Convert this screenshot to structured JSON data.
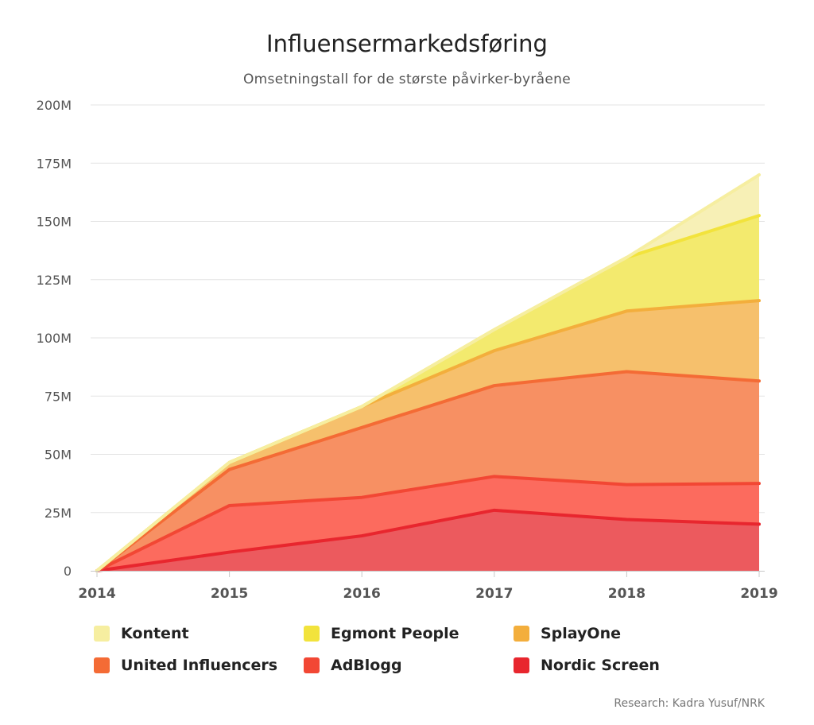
{
  "title": "Influensermarkedsføring",
  "subtitle": "Omsetningstall for de største påvirker-byråene",
  "credit": "Research: Kadra Yusuf/NRK",
  "chart_data": {
    "type": "area",
    "stacked": true,
    "title": "Influensermarkedsføring",
    "subtitle": "Omsetningstall for de største påvirker-byråene",
    "x": [
      "2014",
      "2015",
      "2016",
      "2017",
      "2018",
      "2019"
    ],
    "ylim": [
      0,
      200
    ],
    "y_ticks": [
      "0",
      "25M",
      "50M",
      "75M",
      "100M",
      "125M",
      "150M",
      "175M",
      "200M"
    ],
    "y_tick_values": [
      0,
      25,
      50,
      75,
      100,
      125,
      150,
      175,
      200
    ],
    "grid": true,
    "legend_position": "bottom",
    "series": [
      {
        "name": "Nordic Screen",
        "color": "#e8262e",
        "fill": "#ec5a5e",
        "values": [
          0,
          8,
          15,
          26,
          22,
          20
        ]
      },
      {
        "name": "AdBlogg",
        "color": "#f24734",
        "fill": "#fc6b5e",
        "values": [
          0,
          20,
          16.5,
          14.5,
          15,
          17.5
        ]
      },
      {
        "name": "United Influencers",
        "color": "#f46b35",
        "fill": "#f79063",
        "values": [
          0,
          15.5,
          30,
          39,
          48.5,
          44
        ]
      },
      {
        "name": "SplayOne",
        "color": "#f3ae3c",
        "fill": "#f6c06c",
        "values": [
          0,
          3,
          9,
          15,
          26,
          34.5
        ]
      },
      {
        "name": "Egmont People",
        "color": "#f2e33c",
        "fill": "#f3ea6e",
        "values": [
          0,
          0,
          0,
          9,
          23,
          36.5
        ]
      },
      {
        "name": "Kontent",
        "color": "#f6eea0",
        "fill": "#f7f0b6",
        "values": [
          0,
          0,
          0,
          0,
          0,
          17.5
        ]
      }
    ]
  },
  "legend_order": [
    "Kontent",
    "Egmont People",
    "SplayOne",
    "United Influencers",
    "AdBlogg",
    "Nordic Screen"
  ]
}
